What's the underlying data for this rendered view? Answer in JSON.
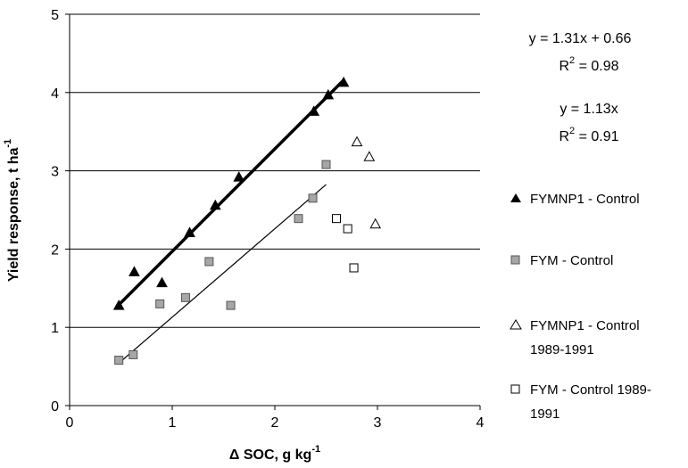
{
  "chart_data": {
    "type": "scatter",
    "xlabel": "Δ SOC, g kg",
    "xlabel_sup": "-1",
    "ylabel": "Yield response, t ha",
    "ylabel_sup": "-1",
    "xlim": [
      0,
      4
    ],
    "ylim": [
      0,
      5
    ],
    "x_ticks": [
      "0",
      "1",
      "2",
      "3",
      "4"
    ],
    "y_ticks": [
      "0",
      "1",
      "2",
      "3",
      "4",
      "5"
    ],
    "grid": "horizontal",
    "legend_position": "right",
    "series": [
      {
        "name": "FYMNP1 - Control",
        "marker": "filled-triangle",
        "color": "#000000",
        "points": [
          [
            0.48,
            1.28
          ],
          [
            0.63,
            1.71
          ],
          [
            0.9,
            1.57
          ],
          [
            1.17,
            2.21
          ],
          [
            1.42,
            2.56
          ],
          [
            1.65,
            2.92
          ],
          [
            2.38,
            3.76
          ],
          [
            2.52,
            3.97
          ],
          [
            2.67,
            4.13
          ]
        ]
      },
      {
        "name": "FYM - Control",
        "marker": "filled-square",
        "color": "#a6a6a6",
        "points": [
          [
            0.48,
            0.58
          ],
          [
            0.62,
            0.65
          ],
          [
            0.88,
            1.3
          ],
          [
            1.13,
            1.38
          ],
          [
            1.36,
            1.84
          ],
          [
            1.57,
            1.28
          ],
          [
            2.23,
            2.39
          ],
          [
            2.37,
            2.65
          ],
          [
            2.5,
            3.08
          ]
        ]
      },
      {
        "name": "FYMNP1 - Control 1989-1991",
        "name_lines": [
          "FYMNP1 - Control",
          "1989-1991"
        ],
        "marker": "open-triangle",
        "color": "#000000",
        "points": [
          [
            2.8,
            3.37
          ],
          [
            2.92,
            3.18
          ],
          [
            2.98,
            2.32
          ]
        ]
      },
      {
        "name": "FYM - Control 1989-1991",
        "name_lines": [
          "FYM - Control 1989-",
          "1991"
        ],
        "marker": "open-square",
        "color": "#000000",
        "points": [
          [
            2.6,
            2.39
          ],
          [
            2.71,
            2.26
          ],
          [
            2.77,
            1.76
          ]
        ]
      }
    ],
    "trendlines": [
      {
        "series": "FYMNP1 - Control",
        "slope": 1.31,
        "intercept": 0.66,
        "x_range": [
          0.48,
          2.67
        ],
        "weight": "bold"
      },
      {
        "series": "FYM - Control",
        "slope": 1.13,
        "intercept": 0,
        "x_range": [
          0.48,
          2.5
        ],
        "weight": "thin"
      }
    ],
    "annotations": {
      "eq1": "y = 1.31x + 0.66",
      "r2_1_prefix": "R",
      "r2_1_exp": "2",
      "r2_1_value": " = 0.98",
      "eq2": "y = 1.13x",
      "r2_2_prefix": "R",
      "r2_2_exp": "2",
      "r2_2_value": " = 0.91"
    }
  }
}
